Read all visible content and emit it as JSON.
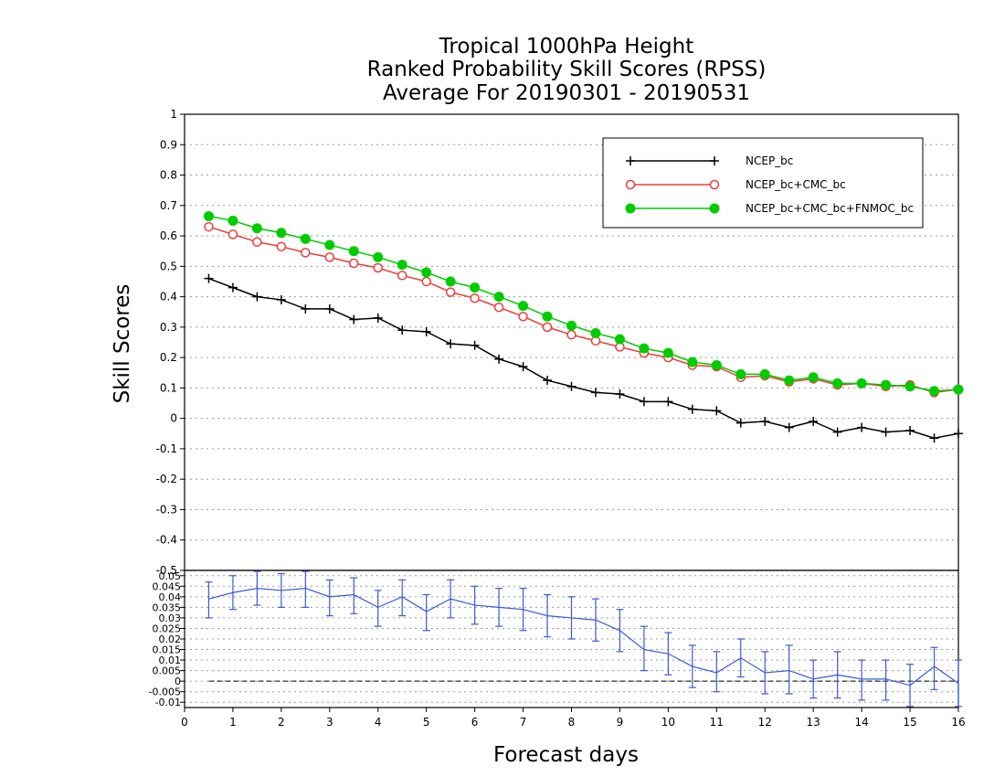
{
  "chart_data": {
    "type": "line",
    "title_lines": [
      "Tropical 1000hPa Height",
      "Ranked Probability Skill Scores (RPSS)",
      "Average For 20190301 - 20190531"
    ],
    "xlabel": "Forecast days",
    "ylabel": "Skill Scores",
    "xlim": [
      0,
      16
    ],
    "ylim": [
      -0.5,
      1
    ],
    "x_ticks": [
      "0",
      "1",
      "2",
      "3",
      "4",
      "5",
      "6",
      "7",
      "8",
      "9",
      "10",
      "11",
      "12",
      "13",
      "14",
      "15",
      "16"
    ],
    "y_ticks": [
      "-0.5",
      "-0.4",
      "-0.3",
      "-0.2",
      "-0.1",
      "0",
      "0.1",
      "0.2",
      "0.3",
      "0.4",
      "0.5",
      "0.6",
      "0.7",
      "0.8",
      "0.9",
      "1"
    ],
    "grid": true,
    "legend_position": "top-right",
    "x": [
      0.5,
      1,
      1.5,
      2,
      2.5,
      3,
      3.5,
      4,
      4.5,
      5,
      5.5,
      6,
      6.5,
      7,
      7.5,
      8,
      8.5,
      9,
      9.5,
      10,
      10.5,
      11,
      11.5,
      12,
      12.5,
      13,
      13.5,
      14,
      14.5,
      15,
      15.5,
      16
    ],
    "series": [
      {
        "name": "NCEP_bc",
        "color": "#000000",
        "marker": "plus",
        "values": [
          0.46,
          0.43,
          0.4,
          0.39,
          0.36,
          0.36,
          0.325,
          0.33,
          0.29,
          0.285,
          0.245,
          0.24,
          0.195,
          0.17,
          0.125,
          0.105,
          0.085,
          0.08,
          0.055,
          0.055,
          0.03,
          0.025,
          -0.015,
          -0.01,
          -0.03,
          -0.01,
          -0.045,
          -0.03,
          -0.045,
          -0.04,
          -0.065,
          -0.05
        ]
      },
      {
        "name": "NCEP_bc+CMC_bc",
        "color": "#f03c3c",
        "marker": "open-circle",
        "values": [
          0.63,
          0.605,
          0.58,
          0.565,
          0.545,
          0.53,
          0.51,
          0.495,
          0.47,
          0.45,
          0.415,
          0.395,
          0.365,
          0.335,
          0.3,
          0.275,
          0.255,
          0.235,
          0.215,
          0.2,
          0.175,
          0.17,
          0.135,
          0.14,
          0.12,
          0.13,
          0.11,
          0.115,
          0.105,
          0.11,
          0.085,
          0.095
        ]
      },
      {
        "name": "NCEP_bc+CMC_bc+FNMOC_bc",
        "color": "#00cc00",
        "marker": "filled-circle",
        "values": [
          0.665,
          0.65,
          0.625,
          0.61,
          0.59,
          0.57,
          0.55,
          0.53,
          0.505,
          0.48,
          0.45,
          0.43,
          0.4,
          0.37,
          0.335,
          0.305,
          0.28,
          0.26,
          0.23,
          0.215,
          0.185,
          0.175,
          0.145,
          0.145,
          0.125,
          0.135,
          0.115,
          0.115,
          0.11,
          0.105,
          0.09,
          0.095
        ]
      }
    ],
    "difference_panel": {
      "color": "#3a5ad8",
      "ylim": [
        -0.0125,
        0.0525
      ],
      "y_ticks": [
        "-0.01",
        "-0.005",
        "0",
        "0.005",
        "0.01",
        "0.015",
        "0.02",
        "0.025",
        "0.03",
        "0.035",
        "0.04",
        "0.045",
        "0.05"
      ],
      "values": [
        0.039,
        0.042,
        0.044,
        0.043,
        0.044,
        0.04,
        0.041,
        0.035,
        0.04,
        0.033,
        0.039,
        0.036,
        0.035,
        0.034,
        0.031,
        0.03,
        0.029,
        0.024,
        0.015,
        0.013,
        0.007,
        0.004,
        0.011,
        0.004,
        0.005,
        0.001,
        0.003,
        0.001,
        0.001,
        -0.002,
        0.007,
        -0.001
      ],
      "err_low": [
        0.03,
        0.034,
        0.036,
        0.035,
        0.035,
        0.031,
        0.032,
        0.026,
        0.031,
        0.024,
        0.03,
        0.027,
        0.026,
        0.024,
        0.021,
        0.02,
        0.019,
        0.014,
        0.005,
        0.003,
        -0.003,
        -0.005,
        0.002,
        -0.006,
        -0.006,
        -0.008,
        -0.008,
        -0.009,
        -0.009,
        -0.012,
        -0.004,
        -0.012
      ],
      "err_high": [
        0.047,
        0.05,
        0.052,
        0.051,
        0.052,
        0.048,
        0.049,
        0.043,
        0.048,
        0.041,
        0.048,
        0.045,
        0.044,
        0.044,
        0.041,
        0.04,
        0.039,
        0.034,
        0.026,
        0.023,
        0.017,
        0.014,
        0.02,
        0.014,
        0.017,
        0.01,
        0.014,
        0.01,
        0.01,
        0.008,
        0.016,
        0.01
      ]
    }
  }
}
